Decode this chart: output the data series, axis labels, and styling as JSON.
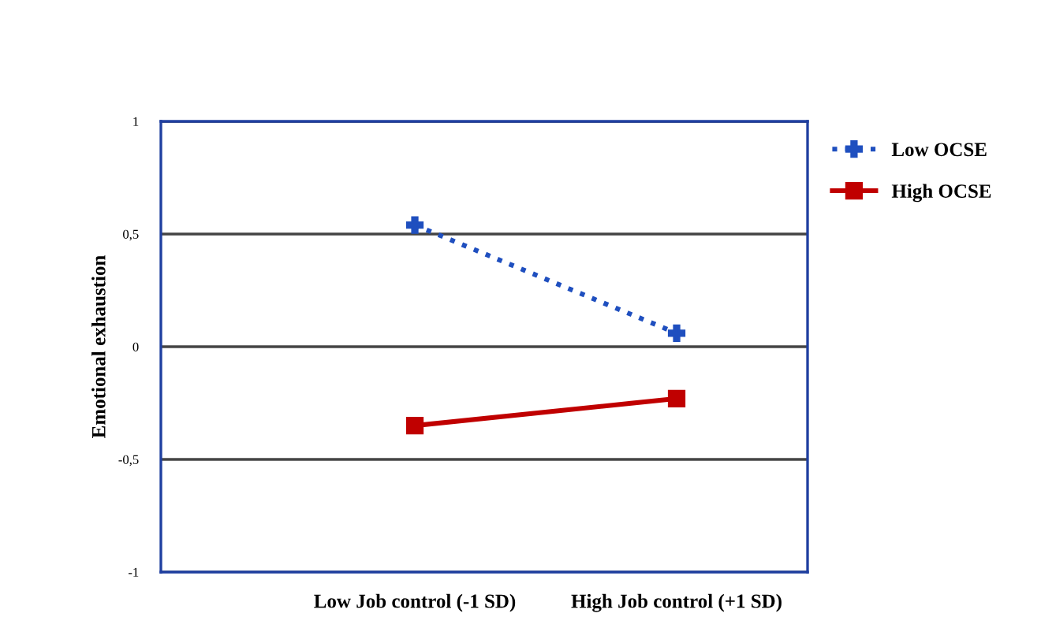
{
  "chart_data": {
    "type": "line",
    "ylabel": "Emotional exhaustion",
    "categories": [
      "Low Job control (-1 SD)",
      "High Job control (+1 SD)"
    ],
    "series": [
      {
        "name": "Low OCSE",
        "color": "#1f4fbf",
        "values": [
          0.54,
          0.06
        ],
        "marker": "cross",
        "line_style": "dotted"
      },
      {
        "name": "High OCSE",
        "color": "#c00000",
        "values": [
          -0.35,
          -0.23
        ],
        "marker": "square",
        "line_style": "solid"
      }
    ],
    "ylim": [
      -1,
      1
    ],
    "yticks": [
      {
        "value": -1,
        "label": "-1"
      },
      {
        "value": -0.5,
        "label": "-0,5"
      },
      {
        "value": 0,
        "label": "0"
      },
      {
        "value": 0.5,
        "label": "0,5"
      },
      {
        "value": 1,
        "label": "1"
      }
    ],
    "grid": "y",
    "legend": "top right"
  }
}
